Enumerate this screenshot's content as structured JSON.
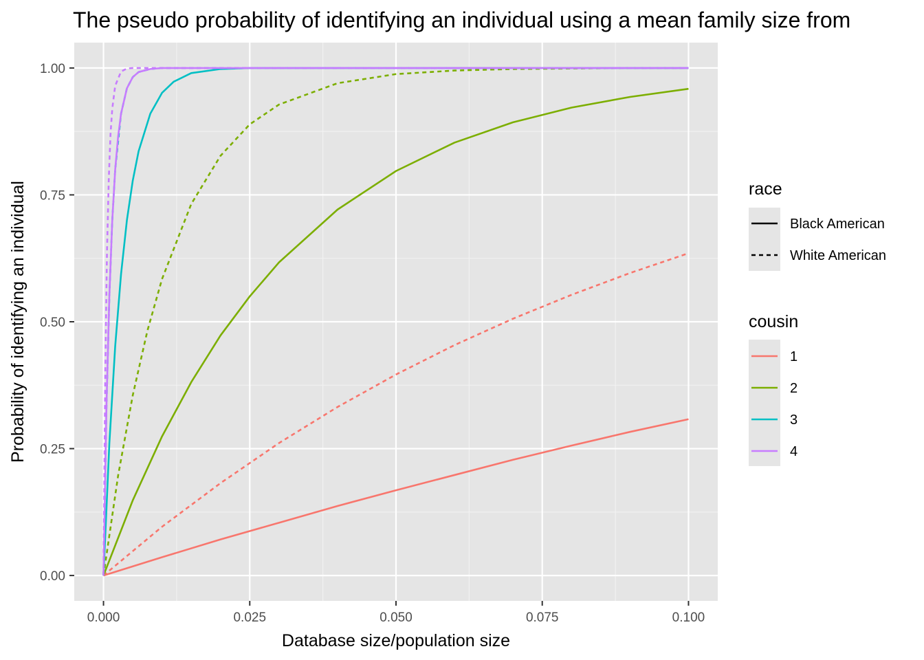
{
  "chart_data": {
    "type": "line",
    "title": "The pseudo probability of identifying an individual using a mean family size from",
    "xlabel": "Database size/population size",
    "ylabel": "Probability of identifying an individual",
    "xlim": [
      -0.005,
      0.105
    ],
    "ylim": [
      -0.05,
      1.05
    ],
    "x_ticks": [
      0.0,
      0.025,
      0.05,
      0.075,
      0.1
    ],
    "x_tick_labels": [
      "0.000",
      "0.025",
      "0.050",
      "0.075",
      "0.100"
    ],
    "y_ticks": [
      0.0,
      0.25,
      0.5,
      0.75,
      1.0
    ],
    "y_tick_labels": [
      "0.00",
      "0.25",
      "0.50",
      "0.75",
      "1.00"
    ],
    "grid": true,
    "background": "#e5e5e5",
    "legend": {
      "placement": "right",
      "race": {
        "title": "race",
        "entries": [
          {
            "label": "Black American",
            "linetype": "solid"
          },
          {
            "label": "White American",
            "linetype": "dashed"
          }
        ]
      },
      "cousin": {
        "title": "cousin",
        "entries": [
          {
            "label": "1",
            "color": "#F8766D"
          },
          {
            "label": "2",
            "color": "#7CAE00"
          },
          {
            "label": "3",
            "color": "#00BFC4"
          },
          {
            "label": "4",
            "color": "#C77CFF"
          }
        ]
      }
    },
    "series": [
      {
        "cousin": "1",
        "race": "Black American",
        "color": "#F8766D",
        "linetype": "solid",
        "x": [
          0,
          0.01,
          0.02,
          0.03,
          0.04,
          0.05,
          0.06,
          0.07,
          0.08,
          0.09,
          0.1
        ],
        "y": [
          0,
          0.036,
          0.071,
          0.104,
          0.137,
          0.168,
          0.198,
          0.228,
          0.256,
          0.283,
          0.308
        ]
      },
      {
        "cousin": "1",
        "race": "White American",
        "color": "#F8766D",
        "linetype": "dashed",
        "x": [
          0,
          0.01,
          0.02,
          0.03,
          0.04,
          0.05,
          0.06,
          0.07,
          0.08,
          0.09,
          0.1
        ],
        "y": [
          0,
          0.096,
          0.182,
          0.261,
          0.332,
          0.396,
          0.454,
          0.506,
          0.553,
          0.596,
          0.635
        ]
      },
      {
        "cousin": "2",
        "race": "Black American",
        "color": "#7CAE00",
        "linetype": "solid",
        "x": [
          0,
          0.005,
          0.01,
          0.015,
          0.02,
          0.025,
          0.03,
          0.04,
          0.05,
          0.06,
          0.07,
          0.08,
          0.09,
          0.1
        ],
        "y": [
          0,
          0.148,
          0.274,
          0.381,
          0.473,
          0.55,
          0.617,
          0.721,
          0.797,
          0.853,
          0.893,
          0.922,
          0.943,
          0.959
        ]
      },
      {
        "cousin": "2",
        "race": "White American",
        "color": "#7CAE00",
        "linetype": "dashed",
        "x": [
          0,
          0.0025,
          0.005,
          0.0075,
          0.01,
          0.015,
          0.02,
          0.025,
          0.03,
          0.04,
          0.05,
          0.06,
          0.07,
          0.08,
          0.09,
          0.1
        ],
        "y": [
          0,
          0.197,
          0.355,
          0.482,
          0.584,
          0.732,
          0.827,
          0.889,
          0.928,
          0.97,
          0.988,
          0.995,
          0.998,
          0.999,
          1.0,
          1.0
        ]
      },
      {
        "cousin": "3",
        "race": "Black American",
        "color": "#00BFC4",
        "linetype": "solid",
        "x": [
          0,
          0.001,
          0.002,
          0.003,
          0.004,
          0.005,
          0.006,
          0.008,
          0.01,
          0.012,
          0.015,
          0.02,
          0.025,
          0.03,
          0.05,
          0.1
        ],
        "y": [
          0,
          0.26,
          0.452,
          0.594,
          0.7,
          0.778,
          0.836,
          0.91,
          0.951,
          0.973,
          0.99,
          0.998,
          1.0,
          1.0,
          1.0,
          1.0
        ]
      },
      {
        "cousin": "3",
        "race": "White American",
        "color": "#00BFC4",
        "linetype": "dashed",
        "x": [
          0,
          0.0005,
          0.001,
          0.0015,
          0.002,
          0.003,
          0.004,
          0.005,
          0.006,
          0.008,
          0.01,
          0.015,
          0.02,
          0.05,
          0.1
        ],
        "y": [
          0,
          0.33,
          0.55,
          0.7,
          0.8,
          0.91,
          0.96,
          0.982,
          0.992,
          0.998,
          1.0,
          1.0,
          1.0,
          1.0,
          1.0
        ]
      },
      {
        "cousin": "4",
        "race": "Black American",
        "color": "#C77CFF",
        "linetype": "solid",
        "x": [
          0,
          0.0005,
          0.001,
          0.0015,
          0.002,
          0.0025,
          0.003,
          0.004,
          0.005,
          0.006,
          0.008,
          0.01,
          0.015,
          0.05,
          0.1
        ],
        "y": [
          0,
          0.33,
          0.55,
          0.7,
          0.8,
          0.865,
          0.91,
          0.96,
          0.982,
          0.992,
          0.998,
          1.0,
          1.0,
          1.0,
          1.0
        ]
      },
      {
        "cousin": "4",
        "race": "White American",
        "color": "#C77CFF",
        "linetype": "dashed",
        "x": [
          0,
          0.0003,
          0.0006,
          0.0009,
          0.0012,
          0.0015,
          0.002,
          0.003,
          0.004,
          0.005,
          0.01,
          0.05,
          0.1
        ],
        "y": [
          0,
          0.4,
          0.64,
          0.78,
          0.87,
          0.92,
          0.965,
          0.993,
          0.999,
          1.0,
          1.0,
          1.0,
          1.0
        ]
      }
    ]
  }
}
